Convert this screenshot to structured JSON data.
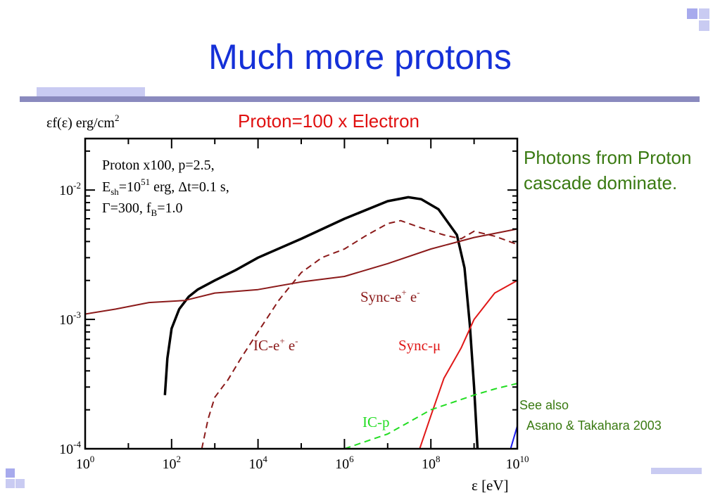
{
  "slide": {
    "title": "Much more protons"
  },
  "notes": {
    "photons": "Photons from Proton cascade dominate.",
    "see_also": "See also",
    "reference": "Asano & Takahara 2003"
  },
  "colors": {
    "title": "#1530d8",
    "notes": "#3a7a12",
    "heading": "#e01010",
    "total": "#000000",
    "ic_pairs": "#8b1a1a",
    "sync_pairs": "#8b1a1a",
    "sync_mu": "#e01818",
    "ic_p": "#22dd22",
    "extra": "#1a1aee"
  },
  "chart_data": {
    "type": "line",
    "title": "Proton=100 x Electron",
    "ylabel_prefix": "εf(ε) erg/cm",
    "ylabel_sup": "2",
    "xlabel": "ε [eV]",
    "x_scale": "log",
    "y_scale": "log",
    "xlim": [
      1,
      10000000000
    ],
    "ylim": [
      0.0001,
      0.025
    ],
    "x_ticks": [
      {
        "value": 1,
        "base": "10",
        "exp": "0"
      },
      {
        "value": 100,
        "base": "10",
        "exp": "2"
      },
      {
        "value": 10000,
        "base": "10",
        "exp": "4"
      },
      {
        "value": 1000000,
        "base": "10",
        "exp": "6"
      },
      {
        "value": 100000000,
        "base": "10",
        "exp": "8"
      },
      {
        "value": 10000000000,
        "base": "10",
        "exp": "10"
      }
    ],
    "y_ticks": [
      {
        "value": 0.01,
        "base": "10",
        "exp": "-2"
      },
      {
        "value": 0.001,
        "base": "10",
        "exp": "-3"
      },
      {
        "value": 0.0001,
        "base": "10",
        "exp": "-4"
      }
    ],
    "params_box": {
      "line1": "Proton x100, p=2.5,",
      "line2_a": "E",
      "line2_sub": "sh",
      "line2_b": "=10",
      "line2_sup": "51",
      "line2_c": " erg, Δt=0.1 s,",
      "line3_a": "Γ=300, f",
      "line3_sub": "B",
      "line3_b": "=1.0"
    },
    "annotations": {
      "sync_pairs_a": "Sync-e",
      "sync_pairs_sup1": "+",
      "sync_pairs_b": " e",
      "sync_pairs_sup2": "-",
      "ic_pairs_a": "IC-e",
      "ic_pairs_sup1": "+",
      "ic_pairs_b": " e",
      "ic_pairs_sup2": "-",
      "sync_mu": "Sync-μ",
      "ic_p": "IC-p"
    },
    "series": [
      {
        "key": "total",
        "style": "solid-thick",
        "points": [
          [
            70,
            0.00026
          ],
          [
            80,
            0.0005
          ],
          [
            100,
            0.00085
          ],
          [
            150,
            0.0012
          ],
          [
            250,
            0.0015
          ],
          [
            400,
            0.0017
          ],
          [
            1000,
            0.002
          ],
          [
            3000,
            0.0024
          ],
          [
            10000,
            0.003
          ],
          [
            100000,
            0.0042
          ],
          [
            1000000,
            0.006
          ],
          [
            10000000,
            0.0082
          ],
          [
            30000000,
            0.0088
          ],
          [
            60000000,
            0.0085
          ],
          [
            150000000,
            0.0071
          ],
          [
            400000000,
            0.0045
          ],
          [
            600000000,
            0.0025
          ],
          [
            800000000,
            0.0009
          ],
          [
            1000000000,
            0.0003
          ],
          [
            1200000000,
            0.0001
          ]
        ]
      },
      {
        "key": "ic_pairs",
        "style": "dashed",
        "points": [
          [
            500,
            0.0001
          ],
          [
            700,
            0.00017
          ],
          [
            1000,
            0.00025
          ],
          [
            1500,
            0.0003
          ],
          [
            2000,
            0.00034
          ],
          [
            4000,
            0.0005
          ],
          [
            10000,
            0.0008
          ],
          [
            30000,
            0.0014
          ],
          [
            100000,
            0.0023
          ],
          [
            300000,
            0.003
          ],
          [
            1000000,
            0.0035
          ],
          [
            3000000,
            0.0044
          ],
          [
            10000000,
            0.0055
          ],
          [
            20000000,
            0.0058
          ],
          [
            60000000,
            0.0051
          ],
          [
            200000000,
            0.0045
          ],
          [
            500000000,
            0.0042
          ],
          [
            1000000000,
            0.0048
          ],
          [
            3000000000,
            0.0044
          ],
          [
            10000000000,
            0.0038
          ]
        ]
      },
      {
        "key": "sync_pairs",
        "style": "solid",
        "points": [
          [
            1,
            0.0011
          ],
          [
            5,
            0.0012
          ],
          [
            30,
            0.00135
          ],
          [
            200,
            0.0014
          ],
          [
            1000,
            0.0016
          ],
          [
            10000,
            0.0017
          ],
          [
            100000,
            0.00195
          ],
          [
            1000000,
            0.00215
          ],
          [
            10000000,
            0.0027
          ],
          [
            100000000,
            0.0035
          ],
          [
            1000000000,
            0.0043
          ],
          [
            10000000000,
            0.005
          ]
        ]
      },
      {
        "key": "sync_mu",
        "style": "solid",
        "points": [
          [
            55000000,
            0.0001
          ],
          [
            100000000,
            0.00018
          ],
          [
            200000000,
            0.00035
          ],
          [
            500000000,
            0.0006
          ],
          [
            1000000000,
            0.001
          ],
          [
            3000000000,
            0.0016
          ],
          [
            10000000000,
            0.002
          ]
        ]
      },
      {
        "key": "ic_p",
        "style": "dashed",
        "points": [
          [
            1000000,
            0.0001
          ],
          [
            10000000,
            0.00013
          ],
          [
            100000000,
            0.0002
          ],
          [
            1000000000,
            0.00026
          ],
          [
            3000000000,
            0.00029
          ],
          [
            10000000000,
            0.00032
          ]
        ]
      },
      {
        "key": "extra",
        "style": "solid",
        "points": [
          [
            7000000000,
            0.0001
          ],
          [
            10000000000,
            0.00015
          ]
        ]
      }
    ]
  }
}
